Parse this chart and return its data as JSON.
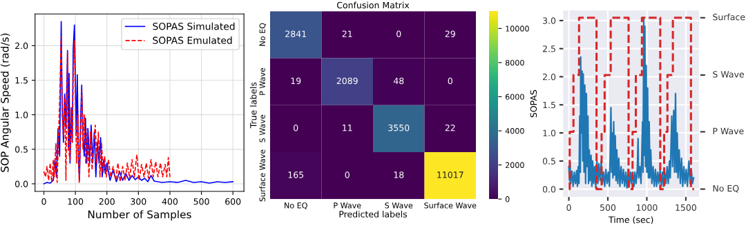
{
  "chart_data": [
    {
      "type": "line",
      "xlabel": "Number of Samples",
      "ylabel": "SOP Angular Speed (rad/s)",
      "xlim": [
        -28,
        635
      ],
      "ylim": [
        -0.11,
        2.46
      ],
      "xticks": [
        0,
        100,
        200,
        300,
        400,
        500,
        600
      ],
      "yticks": [
        {
          "value": 0,
          "label": "0.0"
        },
        {
          "value": 0.5,
          "label": "0.5"
        },
        {
          "value": 1,
          "label": "1.0"
        },
        {
          "value": 1.5,
          "label": "1.5"
        },
        {
          "value": 2,
          "label": "2.0"
        }
      ],
      "grid": true,
      "legend": "top right",
      "series": [
        {
          "name": "SOPAS Simulated",
          "color": "#0000ff",
          "line_style": "solid",
          "x": [
            0,
            10,
            20,
            30,
            35,
            40,
            45,
            50,
            55,
            58,
            62,
            66,
            70,
            72,
            75,
            78,
            80,
            83,
            87,
            90,
            93,
            97,
            100,
            103,
            106,
            110,
            113,
            117,
            120,
            124,
            128,
            132,
            136,
            140,
            145,
            150,
            155,
            160,
            165,
            170,
            175,
            180,
            185,
            190,
            195,
            200,
            210,
            220,
            230,
            240,
            250,
            260,
            270,
            280,
            290,
            300,
            310,
            320,
            330,
            340,
            350,
            375,
            400,
            425,
            450,
            475,
            500,
            525,
            550,
            575,
            600
          ],
          "values": [
            0.0,
            0.02,
            0.01,
            0.05,
            0.35,
            0.1,
            0.8,
            0.4,
            2.35,
            1.2,
            0.6,
            1.3,
            0.8,
            1.25,
            1.93,
            0.5,
            1.6,
            0.3,
            1.1,
            0.6,
            1.95,
            2.3,
            1.5,
            0.7,
            1.58,
            0.3,
            0.05,
            1.0,
            1.43,
            0.7,
            0.4,
            0.95,
            0.3,
            0.8,
            0.3,
            0.85,
            0.3,
            0.75,
            0.1,
            0.6,
            0.3,
            0.67,
            0.1,
            0.35,
            0.15,
            0.3,
            0.05,
            0.2,
            0.03,
            0.18,
            0.05,
            0.15,
            0.05,
            0.12,
            0.06,
            0.1,
            0.05,
            0.08,
            0.03,
            0.12,
            0.04,
            0.02,
            0.03,
            0.02,
            0.05,
            0.02,
            0.03,
            0.01,
            0.03,
            0.02,
            0.03
          ]
        },
        {
          "name": "SOPAS Emulated",
          "color": "#ff0000",
          "line_style": "dashed",
          "x": [
            0,
            5,
            10,
            15,
            20,
            25,
            30,
            33,
            38,
            42,
            46,
            50,
            55,
            58,
            62,
            66,
            70,
            75,
            78,
            83,
            87,
            90,
            94,
            97,
            100,
            104,
            108,
            112,
            117,
            120,
            124,
            128,
            133,
            138,
            143,
            148,
            153,
            158,
            163,
            168,
            173,
            178,
            183,
            188,
            193,
            198,
            205,
            212,
            220,
            228,
            235,
            242,
            250,
            258,
            265,
            272,
            280,
            287,
            295,
            302,
            310,
            318,
            325,
            332,
            340,
            347,
            355,
            362,
            370,
            377,
            385,
            390,
            395,
            400
          ],
          "values": [
            0.18,
            0.1,
            0.25,
            0.05,
            0.3,
            0.02,
            0.35,
            0.1,
            0.58,
            0.02,
            0.6,
            1.2,
            2.13,
            1.0,
            0.7,
            1.25,
            0.05,
            1.9,
            0.5,
            0.35,
            1.1,
            0.6,
            1.75,
            2.07,
            1.2,
            0.3,
            1.0,
            0.02,
            0.8,
            1.35,
            0.5,
            1.0,
            0.3,
            0.8,
            0.1,
            0.75,
            0.2,
            0.6,
            0.85,
            0.3,
            0.75,
            0.1,
            0.6,
            0.15,
            0.4,
            0.1,
            0.35,
            0.1,
            0.25,
            0.05,
            0.3,
            0.03,
            0.25,
            0.05,
            0.3,
            0.08,
            0.35,
            0.1,
            0.42,
            0.05,
            0.28,
            0.1,
            0.3,
            0.08,
            0.35,
            0.1,
            0.32,
            0.1,
            0.3,
            0.1,
            0.28,
            0.1,
            0.38,
            0.1
          ]
        }
      ]
    },
    {
      "type": "heatmap",
      "title": "Confusion Matrix",
      "xlabel": "Predicted labels",
      "ylabel": "True labels",
      "categories": [
        "No EQ",
        "P Wave",
        "S Wave",
        "Surface Wave"
      ],
      "y_categories": [
        "No EQ",
        "P Wave",
        "S Wave",
        "Surface Wave"
      ],
      "cells": [
        [
          2841,
          21,
          0,
          29
        ],
        [
          19,
          2089,
          48,
          0
        ],
        [
          0,
          11,
          3550,
          22
        ],
        [
          165,
          0,
          18,
          11017
        ]
      ],
      "data_labels": true,
      "clim": [
        0,
        11017
      ],
      "cticks": [
        0,
        2000,
        4000,
        6000,
        8000,
        10000
      ]
    },
    {
      "type": "line",
      "xlabel": "Time (sec)",
      "ylabel": "SOPAS",
      "xlim": [
        -72,
        1669
      ],
      "ylim": [
        -0.14,
        3.18
      ],
      "xticks": [
        0,
        500,
        1000,
        1500
      ],
      "yticks": [
        {
          "value": 0,
          "label": "0.0"
        },
        {
          "value": 0.5,
          "label": "0.5"
        },
        {
          "value": 1,
          "label": "1.0"
        },
        {
          "value": 1.5,
          "label": "1.5"
        },
        {
          "value": 2,
          "label": "2.0"
        },
        {
          "value": 2.5,
          "label": "2.5"
        },
        {
          "value": 3,
          "label": "3.0"
        }
      ],
      "annotations": [
        "No EQ",
        "P Wave",
        "S Wave",
        "Surface"
      ],
      "grid": true,
      "series": [
        {
          "type": "line",
          "color": "#1f77b4",
          "line_style": "solid",
          "x": [
            0,
            8,
            15,
            25,
            40,
            55,
            70,
            85,
            100,
            110,
            120,
            130,
            140,
            148,
            152,
            160,
            170,
            178,
            185,
            195,
            205,
            215,
            225,
            235,
            245,
            252,
            262,
            272,
            285,
            295,
            305,
            318,
            330,
            345,
            360,
            372,
            385,
            400,
            415,
            430,
            445,
            460,
            475,
            490,
            505,
            520,
            530,
            540,
            548,
            556,
            565,
            575,
            585,
            595,
            605,
            615,
            628,
            640,
            655,
            670,
            685,
            700,
            715,
            730,
            745,
            760,
            775,
            790,
            805,
            820,
            835,
            848,
            862,
            878,
            888,
            895,
            910,
            925,
            935,
            945,
            952,
            960,
            968,
            975,
            983,
            992,
            1000,
            1010,
            1020,
            1030,
            1040,
            1050,
            1065,
            1080,
            1095,
            1110,
            1125,
            1140,
            1155,
            1170,
            1185,
            1200,
            1215,
            1230,
            1245,
            1260,
            1275,
            1290,
            1300,
            1320,
            1330,
            1345,
            1355,
            1368,
            1378,
            1390,
            1400,
            1415,
            1430,
            1445,
            1460,
            1475,
            1490,
            1505,
            1520,
            1540,
            1555,
            1570,
            1585,
            1600
          ],
          "values": [
            0.4,
            0.15,
            0.48,
            0.1,
            0.32,
            0.05,
            0.3,
            0.1,
            0.33,
            0.05,
            0.4,
            0.1,
            1.3,
            0.3,
            2.35,
            1.0,
            2.1,
            0.5,
            2.05,
            0.3,
            1.85,
            0.1,
            1.7,
            0.4,
            1.3,
            0.1,
            0.7,
            0.15,
            0.6,
            0.05,
            0.5,
            0.1,
            0.4,
            0.02,
            0.5,
            0.1,
            0.45,
            0.15,
            0.5,
            0.1,
            0.3,
            0.05,
            0.35,
            0.1,
            0.3,
            0.05,
            0.6,
            1.45,
            0.3,
            1.0,
            0.2,
            1.2,
            0.25,
            0.95,
            0.15,
            0.7,
            0.1,
            0.55,
            0.05,
            0.4,
            0.1,
            0.35,
            0.05,
            0.3,
            0.02,
            0.35,
            0.05,
            0.3,
            0.1,
            0.3,
            0.05,
            0.3,
            0.1,
            0.35,
            0.9,
            0.2,
            0.4,
            0.1,
            0.6,
            1.2,
            0.3,
            3.05,
            0.6,
            2.9,
            0.4,
            2.2,
            0.3,
            1.8,
            0.2,
            1.2,
            0.2,
            0.7,
            0.1,
            0.4,
            0.05,
            0.35,
            0.05,
            0.3,
            0.1,
            0.35,
            0.05,
            0.3,
            0.05,
            0.3,
            0.1,
            0.4,
            0.1,
            0.5,
            0.2,
            1.3,
            0.4,
            1.4,
            0.3,
            1.7,
            0.3,
            1.0,
            0.2,
            0.7,
            0.1,
            0.55,
            0.05,
            0.4,
            0.1,
            0.35,
            0.05,
            0.5,
            0.1,
            0.35,
            0.1,
            0.2
          ]
        },
        {
          "type": "step",
          "color": "#d62728",
          "line_style": "dashed",
          "x": [
            0,
            11,
            59,
            131,
            355,
            420,
            459,
            537,
            766,
            817,
            859,
            937,
            1172,
            1222,
            1264,
            1334,
            1566,
            1606
          ],
          "values": [
            0,
            1.02,
            2.03,
            3.05,
            0,
            1.02,
            2.03,
            3.05,
            0,
            1.02,
            2.03,
            3.05,
            0,
            1.02,
            2.03,
            3.05,
            0,
            0
          ]
        }
      ]
    }
  ]
}
